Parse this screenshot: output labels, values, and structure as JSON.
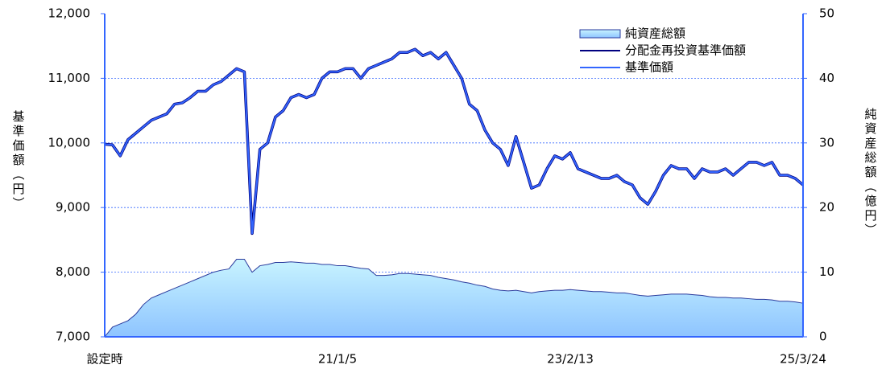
{
  "chart_data": {
    "type": "line",
    "categories": [
      "設定時",
      null,
      null,
      null,
      null,
      null,
      null,
      null,
      null,
      null,
      null,
      null,
      null,
      null,
      null,
      null,
      null,
      null,
      null,
      null,
      null,
      null,
      null,
      null,
      null,
      null,
      null,
      null,
      null,
      null,
      "21/1/5",
      null,
      null,
      null,
      null,
      null,
      null,
      null,
      null,
      null,
      null,
      null,
      null,
      null,
      null,
      null,
      null,
      null,
      null,
      null,
      null,
      null,
      null,
      null,
      null,
      null,
      null,
      null,
      null,
      null,
      "23/2/13",
      null,
      null,
      null,
      null,
      null,
      null,
      null,
      null,
      null,
      null,
      null,
      null,
      null,
      null,
      null,
      null,
      null,
      null,
      null,
      null,
      null,
      null,
      null,
      null,
      null,
      null,
      null,
      null,
      null,
      "25/3/24"
    ],
    "series": [
      {
        "name": "純資産総額",
        "type": "area",
        "axis": "y2",
        "color": "#a8dcff",
        "values": [
          0,
          1.5,
          2,
          2.5,
          3.5,
          5,
          6,
          6.5,
          7,
          7.5,
          8,
          8.5,
          9,
          9.5,
          10,
          10.3,
          10.5,
          12,
          12,
          10,
          11,
          11.2,
          11.5,
          11.5,
          11.6,
          11.5,
          11.4,
          11.4,
          11.2,
          11.2,
          11,
          11,
          10.8,
          10.6,
          10.5,
          9.5,
          9.5,
          9.6,
          9.8,
          9.8,
          9.7,
          9.6,
          9.5,
          9.2,
          9,
          8.8,
          8.5,
          8.3,
          8,
          7.8,
          7.4,
          7.2,
          7.1,
          7.2,
          7,
          6.8,
          7,
          7.1,
          7.2,
          7.2,
          7.3,
          7.2,
          7.1,
          7,
          7,
          6.9,
          6.8,
          6.8,
          6.6,
          6.4,
          6.3,
          6.4,
          6.5,
          6.6,
          6.6,
          6.6,
          6.5,
          6.4,
          6.2,
          6.1,
          6.1,
          6,
          6,
          5.9,
          5.8,
          5.8,
          5.7,
          5.5,
          5.5,
          5.4,
          5.2
        ]
      },
      {
        "name": "分配金再投資基準価額",
        "color": "#000080",
        "values": [
          9980,
          9970,
          9800,
          10050,
          10150,
          10250,
          10350,
          10400,
          10450,
          10600,
          10620,
          10700,
          10800,
          10800,
          10900,
          10950,
          11050,
          11150,
          11100,
          8600,
          9900,
          10000,
          10400,
          10500,
          10700,
          10750,
          10700,
          10750,
          11000,
          11100,
          11100,
          11150,
          11150,
          11000,
          11150,
          11200,
          11250,
          11300,
          11400,
          11400,
          11450,
          11350,
          11400,
          11300,
          11400,
          11200,
          11000,
          10600,
          10500,
          10200,
          10000,
          9900,
          9650,
          10100,
          9700,
          9300,
          9350,
          9600,
          9800,
          9750,
          9850,
          9600,
          9550,
          9500,
          9450,
          9450,
          9500,
          9400,
          9350,
          9150,
          9050,
          9250,
          9500,
          9650,
          9600,
          9600,
          9450,
          9600,
          9550,
          9550,
          9600,
          9500,
          9600,
          9700,
          9700,
          9650,
          9700,
          9500,
          9500,
          9450,
          9350
        ]
      },
      {
        "name": "基準価額",
        "color": "#3366ff",
        "values": [
          9980,
          9970,
          9800,
          10050,
          10150,
          10250,
          10350,
          10400,
          10450,
          10600,
          10620,
          10700,
          10800,
          10800,
          10900,
          10950,
          11050,
          11150,
          11100,
          8600,
          9900,
          10000,
          10400,
          10500,
          10700,
          10750,
          10700,
          10750,
          11000,
          11100,
          11100,
          11150,
          11150,
          11000,
          11150,
          11200,
          11250,
          11300,
          11400,
          11400,
          11450,
          11350,
          11400,
          11300,
          11400,
          11200,
          11000,
          10600,
          10500,
          10200,
          10000,
          9900,
          9650,
          10100,
          9700,
          9300,
          9350,
          9600,
          9800,
          9750,
          9850,
          9600,
          9550,
          9500,
          9450,
          9450,
          9500,
          9400,
          9350,
          9150,
          9050,
          9250,
          9500,
          9650,
          9600,
          9600,
          9450,
          9600,
          9550,
          9550,
          9600,
          9500,
          9600,
          9700,
          9700,
          9650,
          9700,
          9500,
          9500,
          9450,
          9350
        ]
      }
    ],
    "ylabel": "基準価額（円）",
    "y2label": "純資産総額（億円）",
    "ylim": [
      7000,
      12000
    ],
    "yticks": [
      {
        "value": 7000,
        "label": "7,000"
      },
      {
        "value": 8000,
        "label": "8,000"
      },
      {
        "value": 9000,
        "label": "9,000"
      },
      {
        "value": 10000,
        "label": "10,000"
      },
      {
        "value": 11000,
        "label": "11,000"
      },
      {
        "value": 12000,
        "label": "12,000"
      }
    ],
    "y2lim": [
      0,
      50
    ],
    "y2ticks": [
      0,
      10,
      20,
      30,
      40,
      50
    ],
    "grid": true,
    "legend": "upper right"
  }
}
